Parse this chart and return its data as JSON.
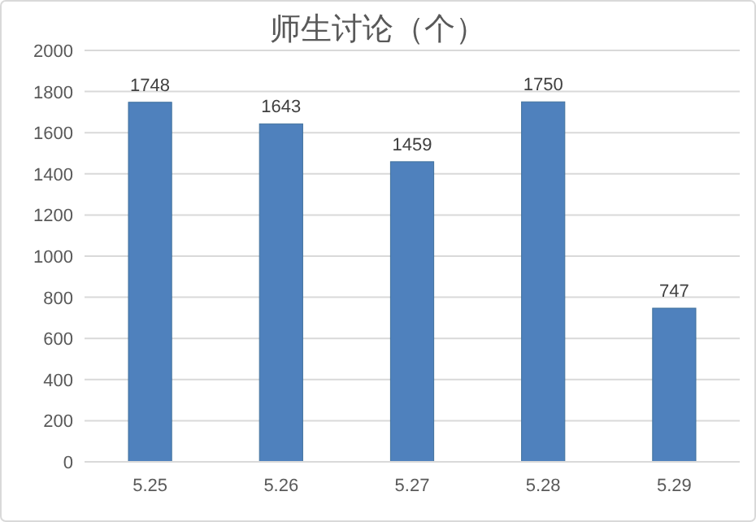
{
  "chart_data": {
    "type": "bar",
    "title": "师生讨论（个）",
    "categories": [
      "5.25",
      "5.26",
      "5.27",
      "5.28",
      "5.29"
    ],
    "values": [
      1748,
      1643,
      1459,
      1750,
      747
    ],
    "color": "#4f81bd",
    "ylim": [
      0,
      2000
    ],
    "yticks": [
      0,
      200,
      400,
      600,
      800,
      1000,
      1200,
      1400,
      1600,
      1800,
      2000
    ],
    "grid": "y",
    "data_labels": true
  }
}
